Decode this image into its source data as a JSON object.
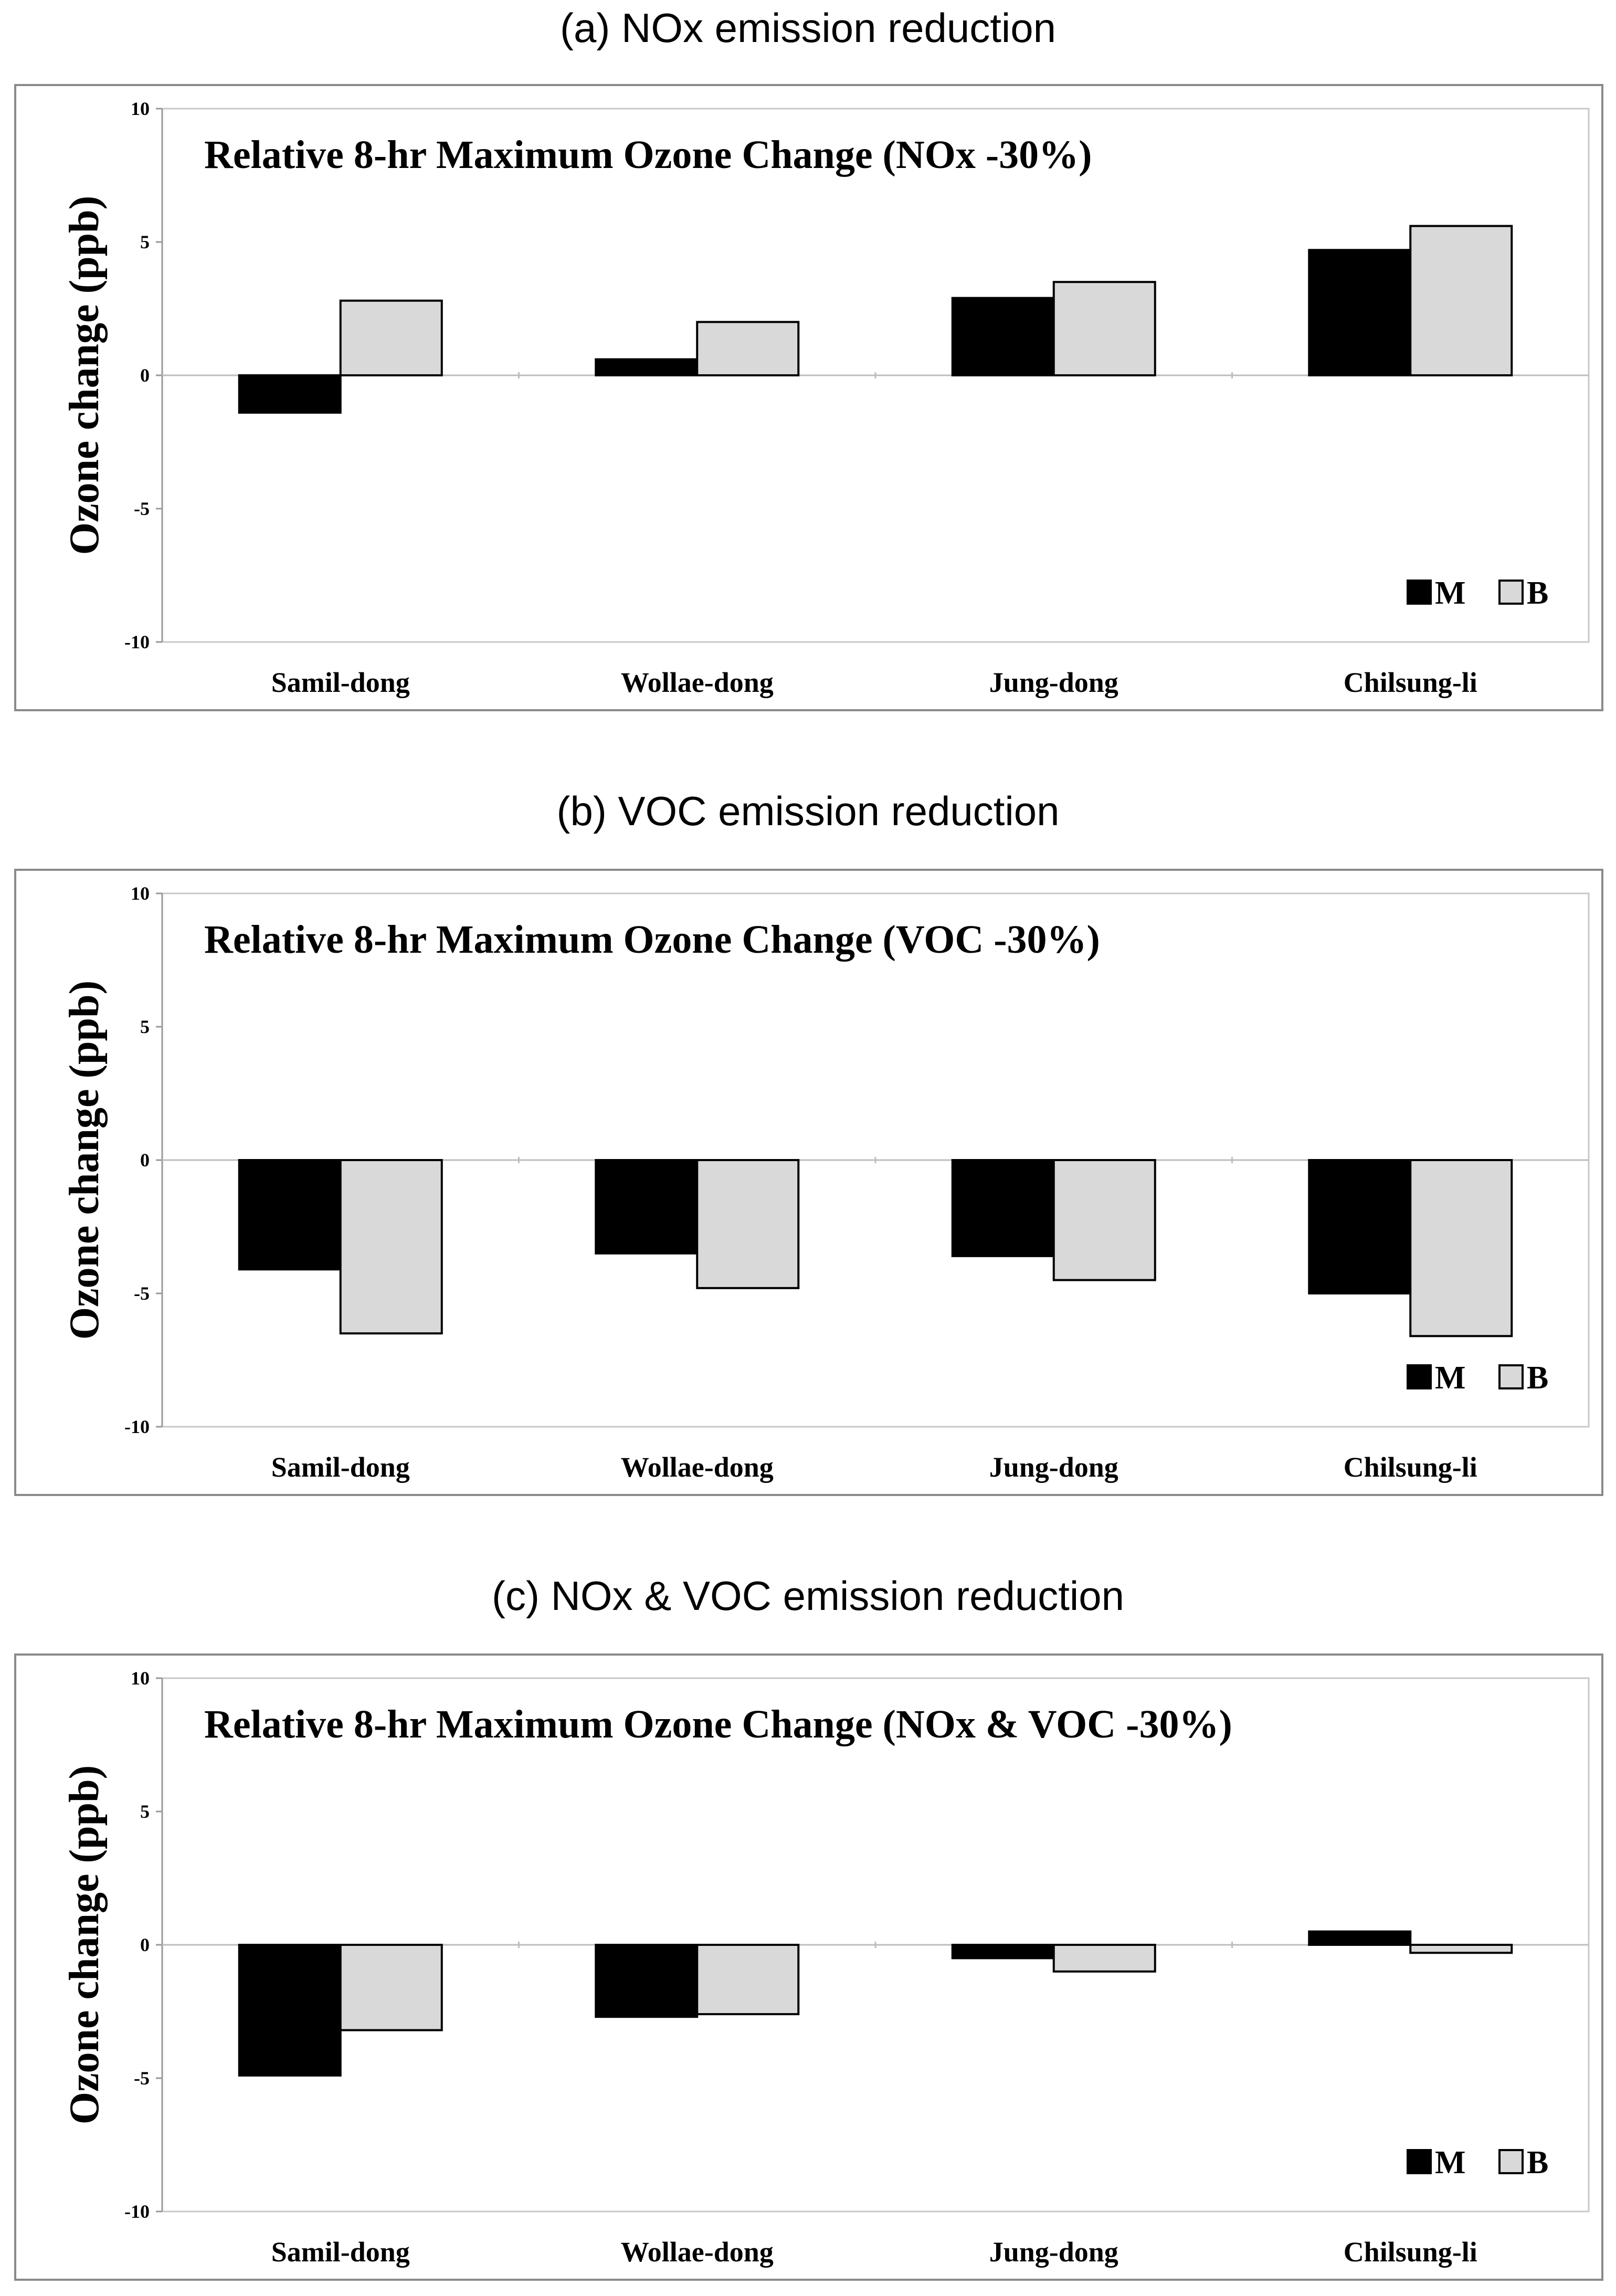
{
  "colors": {
    "M": "#000000",
    "B": "#d9d9d9",
    "stroke": "#000000",
    "frame": "#8a8a8a"
  },
  "chart_data": [
    {
      "type": "bar",
      "caption": "(a) NOx emission reduction",
      "title": "Relative 8-hr Maximum Ozone Change (NOx -30%)",
      "ylabel": "Ozone change (ppb)",
      "xlabel": "",
      "ylim": [
        -10,
        10
      ],
      "yticks": [
        10,
        5,
        0,
        -5,
        -10
      ],
      "categories": [
        "Samil-dong",
        "Wollae-dong",
        "Jung-dong",
        "Chilsung-li"
      ],
      "series": [
        {
          "name": "M",
          "values": [
            -1.4,
            0.6,
            2.9,
            4.7
          ]
        },
        {
          "name": "B",
          "values": [
            2.8,
            2.0,
            3.5,
            5.6
          ]
        }
      ],
      "legend": "bottom-right",
      "grid": false
    },
    {
      "type": "bar",
      "caption": "(b) VOC emission reduction",
      "title": "Relative 8-hr Maximum Ozone Change (VOC -30%)",
      "ylabel": "Ozone change (ppb)",
      "xlabel": "",
      "ylim": [
        -10,
        10
      ],
      "yticks": [
        10,
        5,
        0,
        -5,
        -10
      ],
      "categories": [
        "Samil-dong",
        "Wollae-dong",
        "Jung-dong",
        "Chilsung-li"
      ],
      "series": [
        {
          "name": "M",
          "values": [
            -4.1,
            -3.5,
            -3.6,
            -5.0
          ]
        },
        {
          "name": "B",
          "values": [
            -6.5,
            -4.8,
            -4.5,
            -6.6
          ]
        }
      ],
      "legend": "bottom-right",
      "grid": false
    },
    {
      "type": "bar",
      "caption": "(c) NOx & VOC emission reduction",
      "title": "Relative 8-hr Maximum Ozone Change (NOx & VOC -30%)",
      "ylabel": "Ozone change (ppb)",
      "xlabel": "",
      "ylim": [
        -10,
        10
      ],
      "yticks": [
        10,
        5,
        0,
        -5,
        -10
      ],
      "categories": [
        "Samil-dong",
        "Wollae-dong",
        "Jung-dong",
        "Chilsung-li"
      ],
      "series": [
        {
          "name": "M",
          "values": [
            -4.9,
            -2.7,
            -0.5,
            0.5
          ]
        },
        {
          "name": "B",
          "values": [
            -3.2,
            -2.6,
            -1.0,
            -0.3
          ]
        }
      ],
      "legend": "bottom-right",
      "grid": false
    }
  ]
}
